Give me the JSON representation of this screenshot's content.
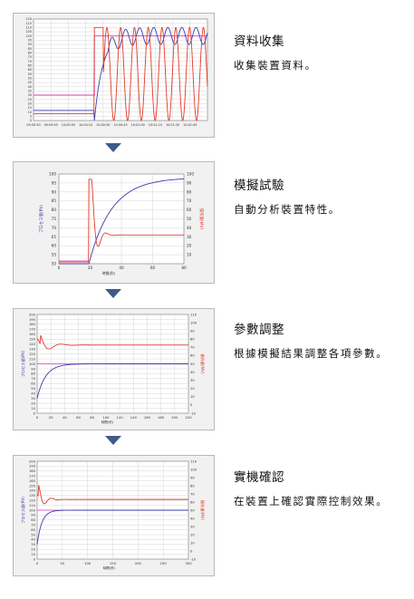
{
  "steps": [
    {
      "title": "資料收集",
      "desc": "收集裝置資料。"
    },
    {
      "title": "模擬試驗",
      "desc": "自動分析裝置特性。"
    },
    {
      "title": "參數調整",
      "desc": "根據模擬結果調整各項參數。"
    },
    {
      "title": "實機確認",
      "desc": "在裝置上確認實際控制效果。"
    }
  ],
  "panel_labels": {
    "p2_left": "プロセス値(PV)",
    "p2_right": "操作量(MV)",
    "p2_x": "時間(秒)",
    "p3_left": "プロセス値(PV)",
    "p3_right": "操作量(MV)",
    "p3_x": "時間(秒)",
    "p4_left": "プロセス値(PV)",
    "p4_right": "操作量(MV)",
    "p4_x": "時間(秒)"
  },
  "colors": {
    "pv_line": "#3b3bb0",
    "mv_line": "#e23b2a",
    "sp_line": "#d43cb7",
    "arrow": "#3f5b89"
  },
  "icons": [
    "triangle-down-arrow-icon"
  ],
  "chart_data": [
    {
      "type": "line",
      "y_ticks": [
        120,
        115,
        110,
        105,
        100,
        95,
        90,
        85,
        80,
        75,
        70,
        65,
        60,
        55,
        50,
        45,
        40,
        35,
        30,
        25,
        20,
        15,
        10,
        5,
        0
      ],
      "x_ticks": [
        "09:59:30",
        "09:59:45",
        "10:00:00",
        "10:00:15",
        "10:00:30",
        "10:00:45",
        "10:01:00",
        "10:01:15",
        "10:01:30",
        "10:01:45"
      ],
      "grid": true
    },
    {
      "type": "line",
      "y_left_ticks": [
        100,
        95,
        90,
        85,
        80,
        75,
        70,
        65,
        60,
        55,
        50
      ],
      "y_right_ticks": [
        100,
        90,
        80,
        70,
        60,
        50,
        40,
        30,
        20,
        10
      ],
      "x_ticks": [
        0,
        20,
        40,
        60,
        80
      ],
      "grid": true
    },
    {
      "type": "line",
      "y_left_ticks": [
        200,
        190,
        180,
        170,
        160,
        150,
        140,
        130,
        120,
        110,
        100,
        90,
        80,
        70,
        60,
        50,
        40,
        30,
        20,
        10,
        0
      ],
      "y_right_ticks": [
        110,
        100,
        90,
        80,
        70,
        60,
        50,
        40,
        30,
        20,
        10,
        0,
        -10
      ],
      "x_ticks": [
        0,
        20,
        40,
        60,
        80,
        100,
        120,
        140,
        160,
        180,
        200,
        220
      ],
      "grid": true
    },
    {
      "type": "line",
      "y_left_ticks": [
        200,
        190,
        180,
        170,
        160,
        150,
        140,
        130,
        120,
        110,
        100,
        90,
        80,
        70,
        60,
        50,
        40,
        30,
        20,
        10,
        0
      ],
      "y_right_ticks": [
        110,
        100,
        90,
        80,
        70,
        60,
        50,
        40,
        30,
        20,
        10,
        0,
        -10
      ],
      "x_ticks": [
        0,
        50,
        100,
        150,
        200,
        250,
        300
      ],
      "grid": true
    }
  ]
}
